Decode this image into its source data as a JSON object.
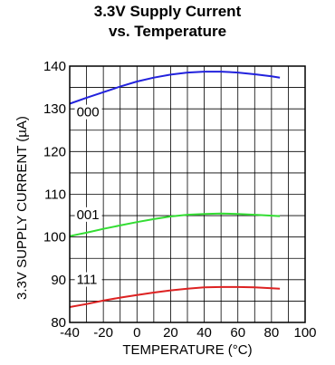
{
  "chart_data": {
    "type": "line",
    "title_lines": [
      "3.3V Supply Current",
      "vs. Temperature"
    ],
    "xlabel": "TEMPERATURE (°C)",
    "ylabel": "3.3V SUPPLY CURRENT (µA)",
    "xlim": [
      -40,
      100
    ],
    "ylim": [
      80,
      140
    ],
    "x_ticks": [
      -40,
      -20,
      0,
      20,
      40,
      60,
      80,
      100
    ],
    "x_tick_labels": [
      "-40",
      "-20",
      "0",
      "20",
      "40",
      "60",
      "80",
      "100"
    ],
    "y_ticks": [
      80,
      90,
      100,
      110,
      120,
      130,
      140
    ],
    "y_tick_labels": [
      "80",
      "90",
      "100",
      "110",
      "120",
      "130",
      "140"
    ],
    "grid": true,
    "series": [
      {
        "name": "000",
        "color": "#2222dd",
        "x": [
          -40,
          -30,
          -20,
          -10,
          0,
          10,
          20,
          30,
          40,
          50,
          60,
          70,
          80,
          85
        ],
        "y": [
          131.2,
          132.6,
          133.9,
          135.2,
          136.4,
          137.3,
          138.0,
          138.5,
          138.7,
          138.7,
          138.5,
          138.1,
          137.6,
          137.3
        ]
      },
      {
        "name": "001",
        "color": "#33dd33",
        "x": [
          -40,
          -30,
          -20,
          -10,
          0,
          10,
          20,
          30,
          40,
          50,
          60,
          70,
          80,
          85
        ],
        "y": [
          100.2,
          101.0,
          101.9,
          102.7,
          103.5,
          104.2,
          104.8,
          105.2,
          105.4,
          105.5,
          105.4,
          105.2,
          105.0,
          104.9
        ]
      },
      {
        "name": "111",
        "color": "#dd2222",
        "x": [
          -40,
          -30,
          -20,
          -10,
          0,
          10,
          20,
          30,
          40,
          50,
          60,
          70,
          80,
          85
        ],
        "y": [
          83.6,
          84.3,
          85.1,
          85.8,
          86.4,
          87.0,
          87.5,
          87.9,
          88.2,
          88.3,
          88.3,
          88.2,
          88.0,
          87.9
        ]
      }
    ]
  }
}
